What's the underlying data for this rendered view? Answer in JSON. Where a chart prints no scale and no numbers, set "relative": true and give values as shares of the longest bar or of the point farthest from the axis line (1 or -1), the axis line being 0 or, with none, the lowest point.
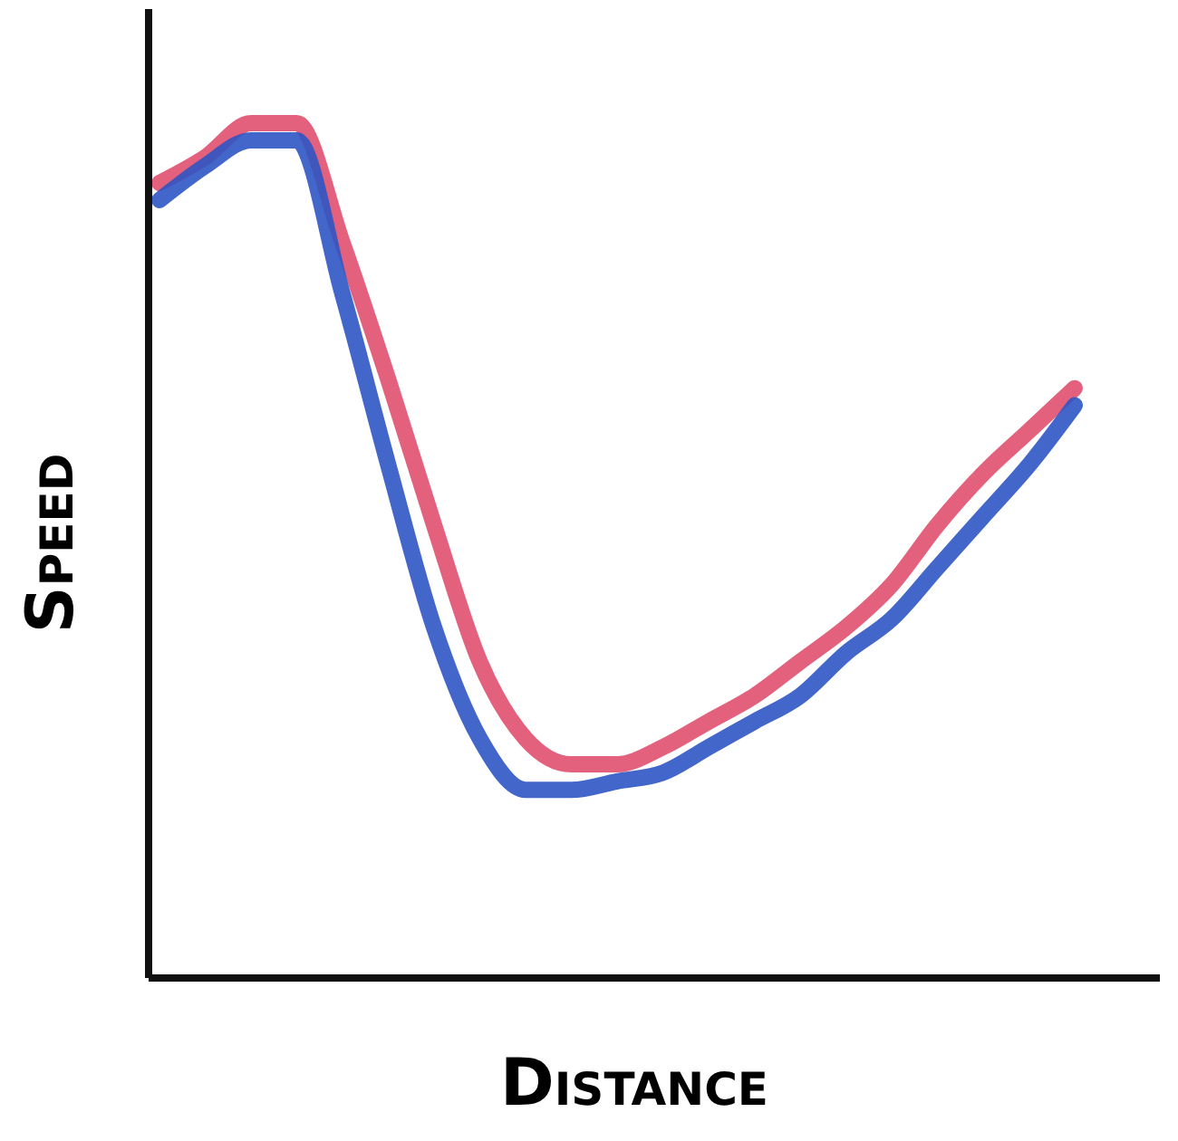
{
  "chart_data": {
    "type": "line",
    "relative": true,
    "xlabel": "Distance",
    "ylabel": "Speed",
    "categories": [
      null,
      null,
      null,
      null,
      null,
      null,
      null,
      null,
      null,
      null,
      null,
      null,
      null,
      null,
      null,
      null,
      null,
      null,
      null,
      null,
      null
    ],
    "series": [
      {
        "color": "#e0506e",
        "values": [
          0.93,
          0.96,
          1.0,
          1.0,
          0.86,
          0.7,
          0.53,
          0.37,
          0.28,
          0.25,
          0.25,
          0.27,
          0.3,
          0.33,
          0.37,
          0.41,
          0.46,
          0.53,
          0.59,
          0.64,
          0.69
        ]
      },
      {
        "color": "#2f55c4",
        "values": [
          0.91,
          0.95,
          0.98,
          0.98,
          0.8,
          0.6,
          0.41,
          0.28,
          0.22,
          0.22,
          0.23,
          0.24,
          0.27,
          0.3,
          0.33,
          0.38,
          0.42,
          0.48,
          0.54,
          0.6,
          0.67
        ]
      }
    ],
    "grid": false,
    "marker": "none",
    "line_style": "solid"
  }
}
